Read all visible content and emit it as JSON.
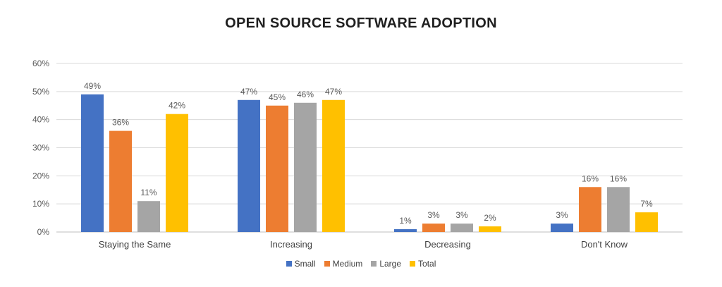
{
  "chart_data": {
    "type": "bar",
    "title": "OPEN SOURCE SOFTWARE ADOPTION",
    "categories": [
      "Staying the Same",
      "Increasing",
      "Decreasing",
      "Don't Know"
    ],
    "series": [
      {
        "name": "Small",
        "color": "#4472C4",
        "values": [
          49,
          47,
          1,
          3
        ],
        "labels": [
          "49%",
          "47%",
          "1%",
          "3%"
        ]
      },
      {
        "name": "Medium",
        "color": "#ED7D31",
        "values": [
          36,
          45,
          3,
          16
        ],
        "labels": [
          "36%",
          "45%",
          "3%",
          "16%"
        ]
      },
      {
        "name": "Large",
        "color": "#A5A5A5",
        "values": [
          11,
          46,
          3,
          16
        ],
        "labels": [
          "11%",
          "46%",
          "3%",
          "16%"
        ]
      },
      {
        "name": "Total",
        "color": "#FFC000",
        "values": [
          42,
          47,
          2,
          7
        ],
        "labels": [
          "42%",
          "47%",
          "2%",
          "7%"
        ]
      }
    ],
    "yticks": [
      "0%",
      "10%",
      "20%",
      "30%",
      "40%",
      "50%",
      "60%"
    ],
    "ylim": [
      0,
      60
    ],
    "grid": true,
    "legend_position": "bottom"
  }
}
